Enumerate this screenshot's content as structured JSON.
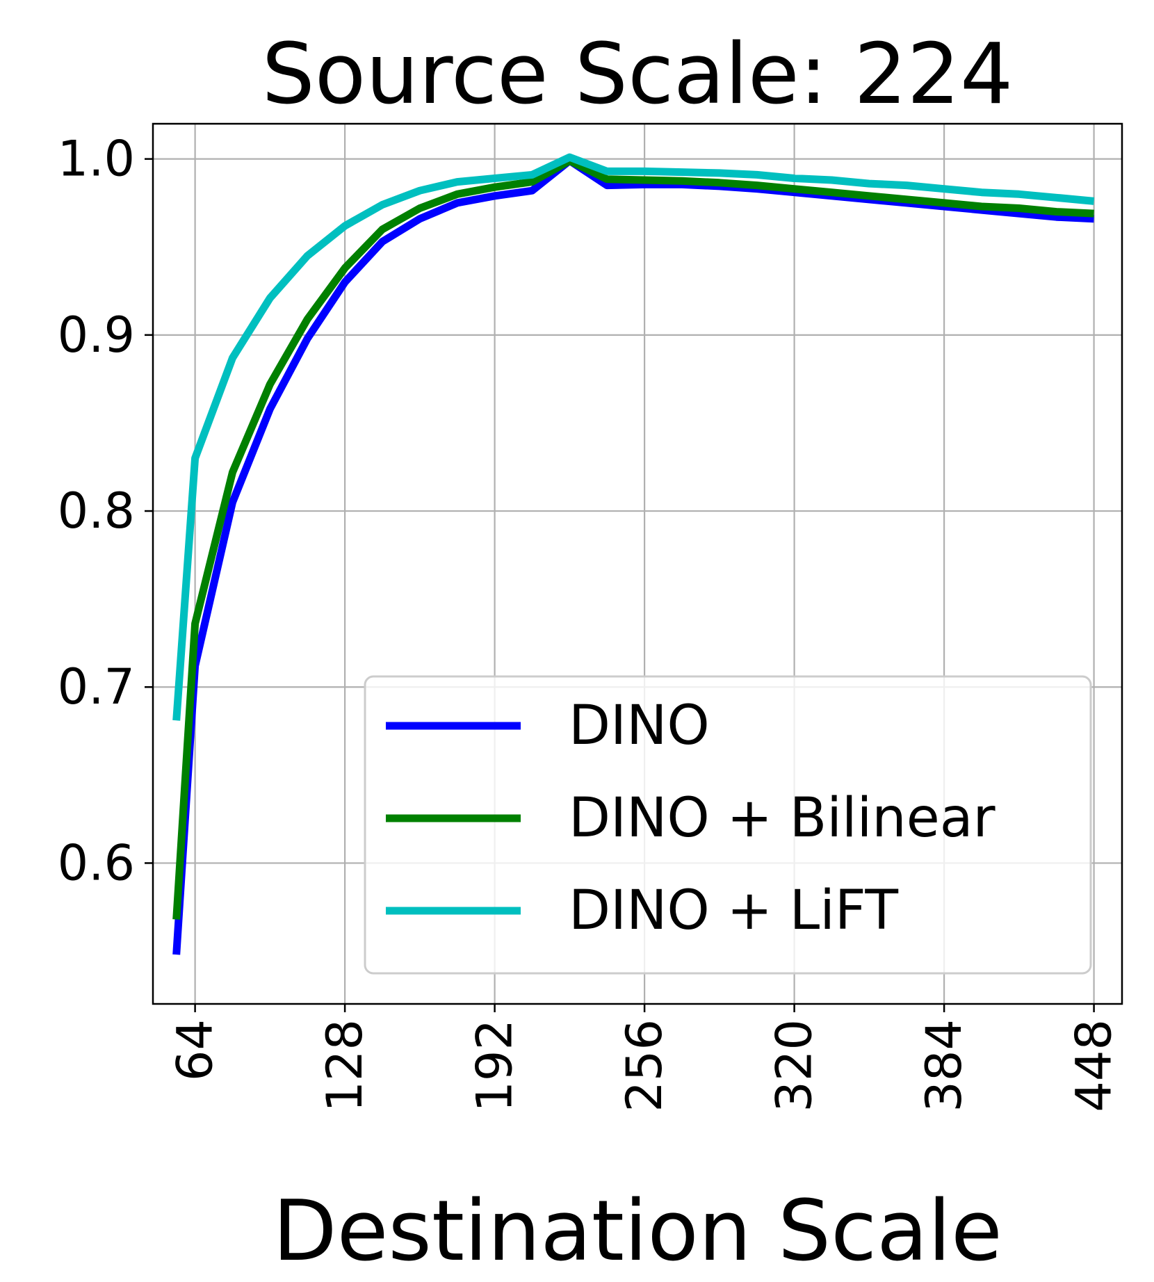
{
  "chart_data": {
    "type": "line",
    "title": "Source Scale: 224",
    "xlabel": "Destination Scale",
    "ylabel": "",
    "xlim": [
      46,
      460
    ],
    "ylim": [
      0.52,
      1.02
    ],
    "xticks": [
      64,
      128,
      192,
      256,
      320,
      384,
      448
    ],
    "xtick_labels": [
      "64",
      "128",
      "192",
      "256",
      "320",
      "384",
      "448"
    ],
    "yticks": [
      0.6,
      0.7,
      0.8,
      0.9,
      1.0
    ],
    "ytick_labels": [
      "0.6",
      "0.7",
      "0.8",
      "0.9",
      "1.0"
    ],
    "grid": true,
    "legend_position": "lower-right",
    "series": [
      {
        "name": "DINO",
        "color": "#0000ff",
        "x": [
          56,
          64,
          80,
          96,
          112,
          128,
          144,
          160,
          176,
          192,
          208,
          224,
          240,
          256,
          272,
          288,
          304,
          320,
          336,
          352,
          368,
          384,
          400,
          416,
          432,
          448
        ],
        "y": [
          0.548,
          0.712,
          0.805,
          0.858,
          0.898,
          0.93,
          0.953,
          0.966,
          0.975,
          0.979,
          0.982,
          0.999,
          0.985,
          0.9855,
          0.9855,
          0.9845,
          0.983,
          0.981,
          0.979,
          0.977,
          0.975,
          0.973,
          0.971,
          0.969,
          0.967,
          0.966
        ]
      },
      {
        "name": "DINO + Bilinear",
        "color": "#008000",
        "x": [
          56,
          64,
          80,
          96,
          112,
          128,
          144,
          160,
          176,
          192,
          208,
          224,
          240,
          256,
          272,
          288,
          304,
          320,
          336,
          352,
          368,
          384,
          400,
          416,
          432,
          448
        ],
        "y": [
          0.568,
          0.736,
          0.822,
          0.872,
          0.909,
          0.938,
          0.96,
          0.972,
          0.98,
          0.984,
          0.987,
          0.999,
          0.9885,
          0.988,
          0.9875,
          0.9865,
          0.985,
          0.983,
          0.981,
          0.979,
          0.977,
          0.975,
          0.973,
          0.972,
          0.97,
          0.969
        ]
      },
      {
        "name": "DINO + LiFT",
        "color": "#00bfbf",
        "x": [
          56,
          64,
          80,
          96,
          112,
          128,
          144,
          160,
          176,
          192,
          208,
          224,
          240,
          256,
          272,
          288,
          304,
          320,
          336,
          352,
          368,
          384,
          400,
          416,
          432,
          448
        ],
        "y": [
          0.681,
          0.83,
          0.887,
          0.921,
          0.945,
          0.962,
          0.974,
          0.982,
          0.987,
          0.989,
          0.991,
          1.001,
          0.993,
          0.993,
          0.9925,
          0.992,
          0.991,
          0.989,
          0.988,
          0.986,
          0.985,
          0.983,
          0.981,
          0.98,
          0.978,
          0.976
        ]
      }
    ]
  }
}
